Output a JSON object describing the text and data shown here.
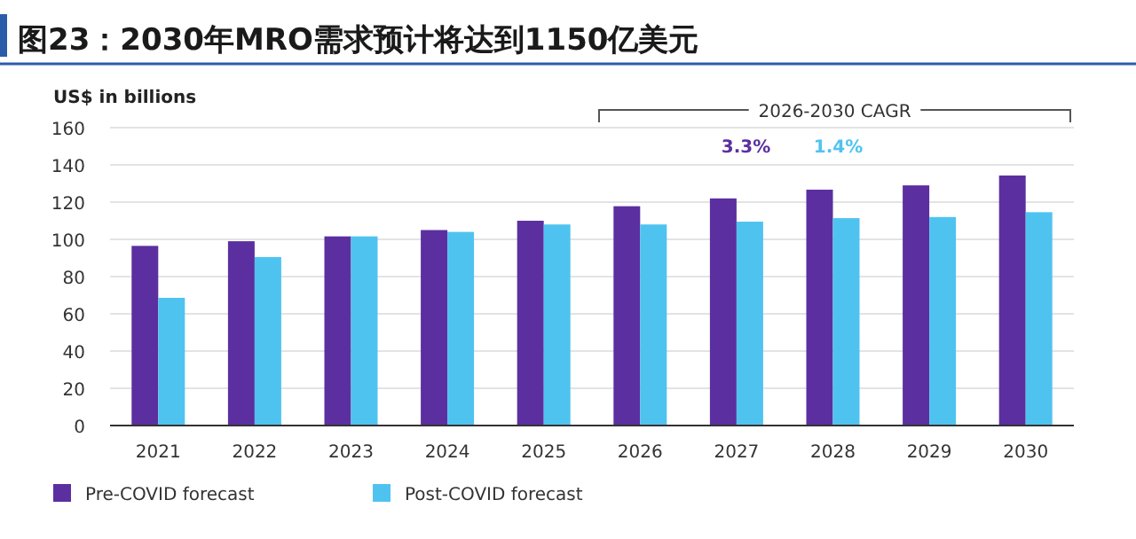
{
  "chart_data": {
    "type": "bar",
    "title": "图23：2030年MRO需求预计将达到1150亿美元",
    "ylabel": "US$ in billions",
    "categories": [
      "2021",
      "2022",
      "2023",
      "2024",
      "2025",
      "2026",
      "2027",
      "2028",
      "2029",
      "2030"
    ],
    "series": [
      {
        "name": "Pre-COVID forecast",
        "color": "#5b2fa0",
        "values": [
          96.5,
          99,
          101.6,
          105,
          110,
          117.8,
          122,
          126.7,
          129,
          134.3
        ]
      },
      {
        "name": "Post-COVID forecast",
        "color": "#4fc3f0",
        "values": [
          68.6,
          90.5,
          101.6,
          104,
          108,
          108,
          109.5,
          111.4,
          112,
          114.6
        ]
      }
    ],
    "annotations": [
      "2026-2030 CAGR",
      "3.3%",
      "1.4%"
    ],
    "ylim": [
      0,
      160
    ],
    "yticks": [
      0,
      20,
      40,
      60,
      80,
      100,
      120,
      140,
      160
    ],
    "grid": "y",
    "legend": "bottom left"
  }
}
